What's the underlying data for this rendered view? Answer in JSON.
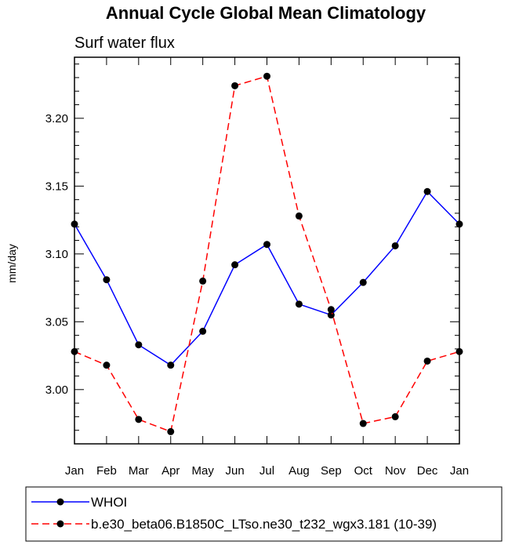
{
  "chart_data": {
    "type": "line",
    "title": "Annual Cycle Global Mean Climatology",
    "subtitle": "Surf water flux",
    "ylabel": "mm/day",
    "xlabel": "",
    "categories": [
      "Jan",
      "Feb",
      "Mar",
      "Apr",
      "May",
      "Jun",
      "Jul",
      "Aug",
      "Sep",
      "Oct",
      "Nov",
      "Dec",
      "Jan"
    ],
    "ylim": [
      2.96,
      3.245
    ],
    "yticks": [
      3.0,
      3.05,
      3.1,
      3.15,
      3.2
    ],
    "ytick_labels": [
      "3.00",
      "3.05",
      "3.10",
      "3.15",
      "3.20"
    ],
    "grid": false,
    "legend_position": "bottom",
    "series": [
      {
        "name": "WHOI",
        "color": "#0000ff",
        "dash": "solid",
        "values": [
          3.122,
          3.081,
          3.033,
          3.018,
          3.043,
          3.092,
          3.107,
          3.063,
          3.055,
          3.079,
          3.106,
          3.146,
          3.122
        ]
      },
      {
        "name": "b.e30_beta06.B1850C_LTso.ne30_t232_wgx3.181 (10-39)",
        "color": "#ff0000",
        "dash": "dashed",
        "values": [
          3.028,
          3.018,
          2.978,
          2.969,
          3.08,
          3.224,
          3.231,
          3.128,
          3.059,
          2.975,
          2.98,
          3.021,
          3.028
        ]
      }
    ]
  }
}
